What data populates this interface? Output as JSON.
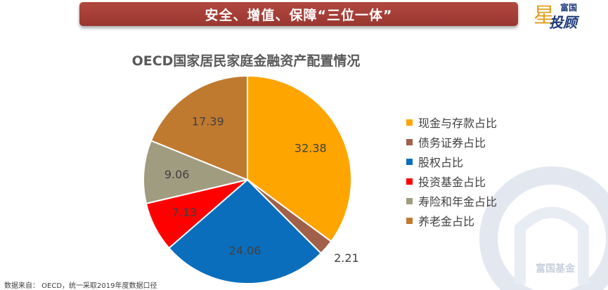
{
  "banner": {
    "text": "安全、增值、保障“三位一体”"
  },
  "logo": {
    "top": "富国",
    "star": "星",
    "main": "投顾"
  },
  "watermark": {
    "text": "富国基金"
  },
  "source": {
    "text": "数据来自： OECD，统一采取2019年度数据口径"
  },
  "chart_data": {
    "type": "pie",
    "title": "OECD国家居民家庭金融资产配置情况",
    "series": [
      {
        "name": "现金与存款占比",
        "value": 32.38,
        "label": "32.38",
        "color": "#ffa500"
      },
      {
        "name": "债务证券占比",
        "value": 2.21,
        "label": "2.21",
        "color": "#a0604a"
      },
      {
        "name": "股权占比",
        "value": 24.06,
        "label": "24.06",
        "color": "#0a6ebd"
      },
      {
        "name": "投资基金占比",
        "value": 7.13,
        "label": "7.13",
        "color": "#ff0000"
      },
      {
        "name": "寿险和年金占比",
        "value": 9.06,
        "label": "9.06",
        "color": "#a09c80"
      },
      {
        "name": "养老金占比",
        "value": 17.39,
        "label": "17.39",
        "color": "#c07a30"
      }
    ],
    "legend_position": "right"
  }
}
